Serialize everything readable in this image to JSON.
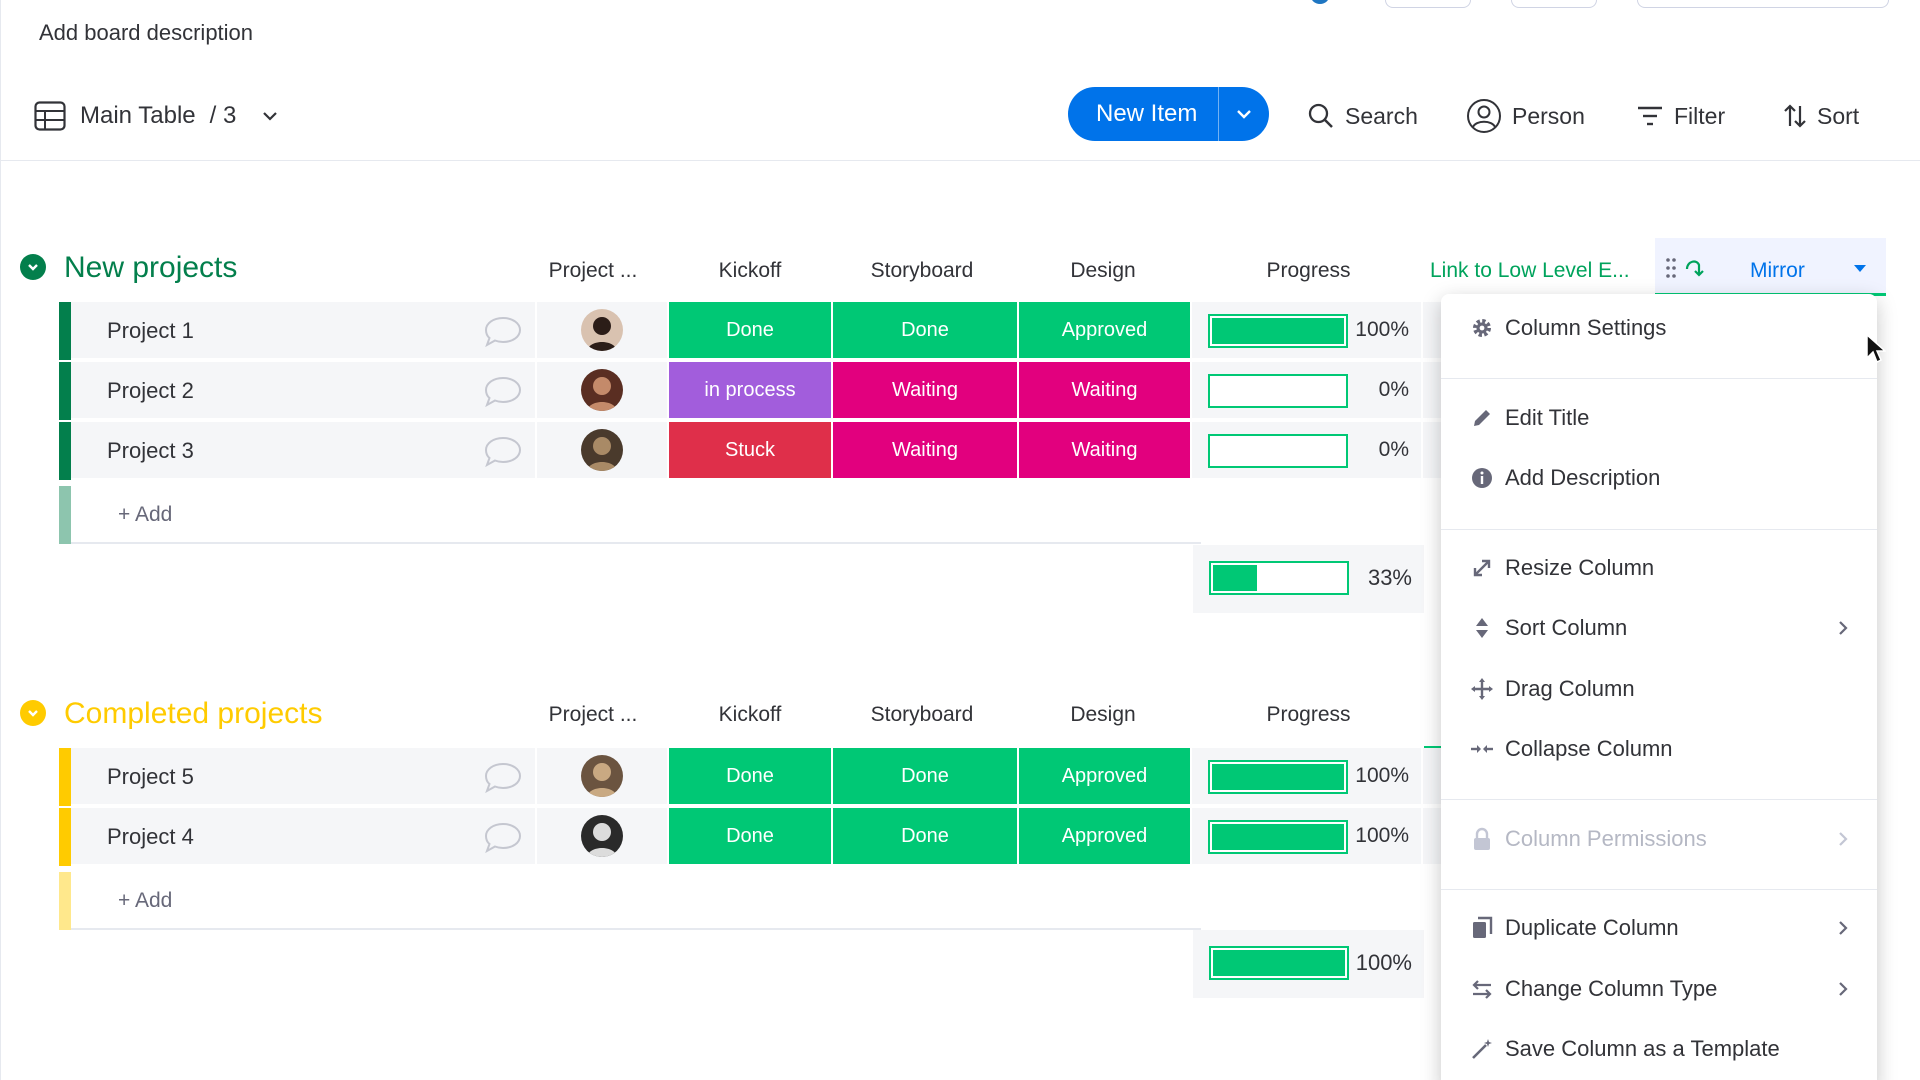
{
  "board": {
    "description_placeholder": "Add board description"
  },
  "toolbar": {
    "view_label": "Main Table",
    "view_count": "/ 3",
    "new_item_label": "New Item",
    "search_label": "Search",
    "person_label": "Person",
    "filter_label": "Filter",
    "sort_label": "Sort"
  },
  "columns": {
    "person": "Project ...",
    "kickoff": "Kickoff",
    "storyboard": "Storyboard",
    "design": "Design",
    "progress": "Progress",
    "link": "Link to Low Level E...",
    "mirror": "Mirror"
  },
  "groups": [
    {
      "title": "New projects",
      "color": "#037f4c",
      "rows": [
        {
          "name": "Project 1",
          "kickoff": "Done",
          "storyboard": "Done",
          "design": "Approved",
          "progress": "100%",
          "progress_value": 1.0
        },
        {
          "name": "Project 2",
          "kickoff": "in process",
          "storyboard": "Waiting",
          "design": "Waiting",
          "progress": "0%",
          "progress_value": 0.0
        },
        {
          "name": "Project 3",
          "kickoff": "Stuck",
          "storyboard": "Waiting",
          "design": "Waiting",
          "progress": "0%",
          "progress_value": 0.0
        }
      ],
      "add_label": "+ Add",
      "summary": "33%",
      "summary_value": 0.33
    },
    {
      "title": "Completed projects",
      "color": "#ffcb00",
      "rows": [
        {
          "name": "Project 5",
          "kickoff": "Done",
          "storyboard": "Done",
          "design": "Approved",
          "progress": "100%",
          "progress_value": 1.0
        },
        {
          "name": "Project 4",
          "kickoff": "Done",
          "storyboard": "Done",
          "design": "Approved",
          "progress": "100%",
          "progress_value": 1.0
        }
      ],
      "add_label": "+ Add",
      "summary": "100%",
      "summary_value": 1.0
    }
  ],
  "status_colors": {
    "Done": "#00c875",
    "Approved": "#00c875",
    "in process": "#a25ddc",
    "Waiting": "#e2007e",
    "Stuck": "#df2f4a"
  },
  "menu": {
    "column_settings": "Column Settings",
    "edit_title": "Edit Title",
    "add_description": "Add Description",
    "resize_column": "Resize Column",
    "sort_column": "Sort Column",
    "drag_column": "Drag Column",
    "collapse_column": "Collapse Column",
    "column_permissions": "Column Permissions",
    "duplicate_column": "Duplicate Column",
    "change_column_type": "Change Column Type",
    "save_as_template": "Save Column as a Template"
  },
  "icons": {
    "settings": "gear-icon",
    "edit": "pencil-icon",
    "info": "info-icon",
    "resize": "resize-icon",
    "sort": "sort-icon",
    "drag": "drag-icon",
    "collapse": "collapse-icon",
    "lock": "lock-icon",
    "duplicate": "duplicate-icon",
    "change_type": "swap-icon",
    "template": "magic-wand-icon"
  }
}
